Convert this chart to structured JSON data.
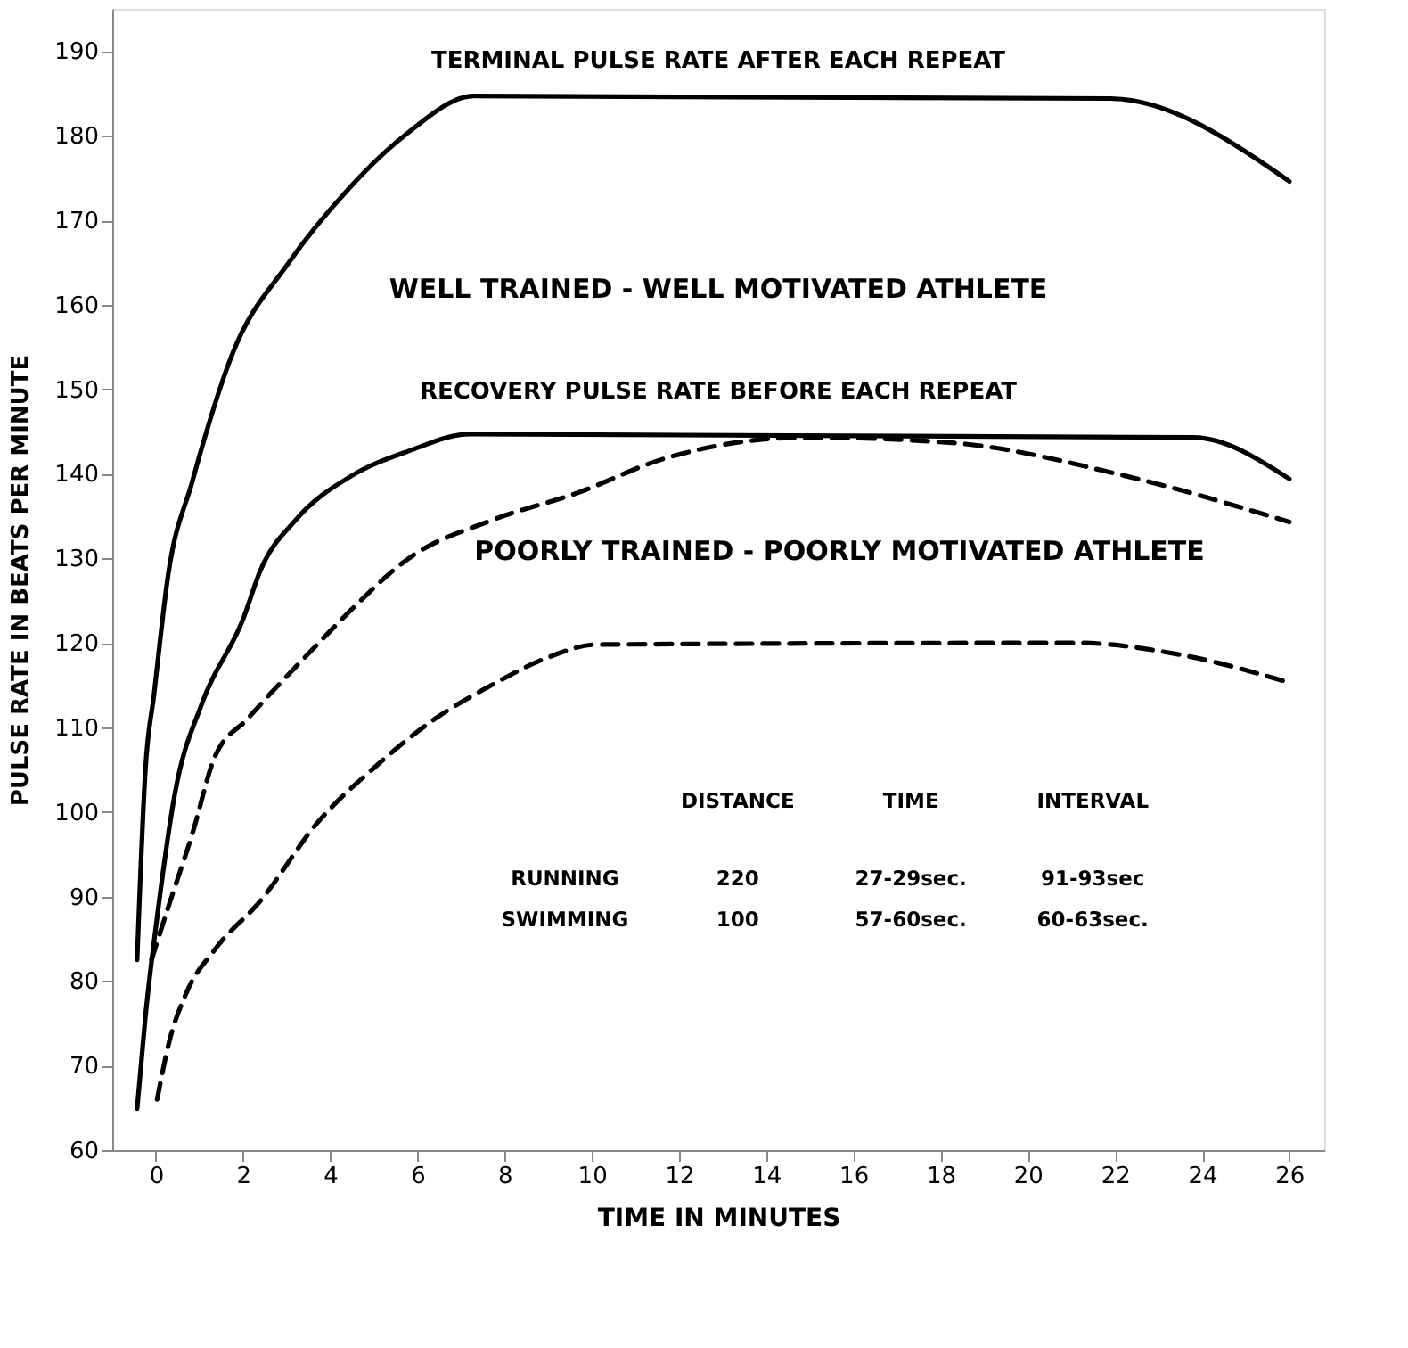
{
  "chart_data": {
    "type": "line",
    "xlabel": "TIME IN MINUTES",
    "ylabel": "PULSE RATE IN BEATS PER MINUTE",
    "xlim": [
      -1,
      26.8
    ],
    "ylim": [
      60,
      195
    ],
    "xticks": [
      0,
      2,
      4,
      6,
      8,
      10,
      12,
      14,
      16,
      18,
      20,
      22,
      24,
      26
    ],
    "yticks": [
      60,
      70,
      80,
      90,
      100,
      110,
      120,
      130,
      140,
      150,
      160,
      170,
      180,
      190
    ],
    "grid": false,
    "marker": "none",
    "series": [
      {
        "color": "#000000",
        "line_style": "solid",
        "x": [
          -0.43,
          -0.24,
          -0.04,
          0.28,
          0.83,
          1.74,
          3.05,
          4.4,
          5.7,
          7.3,
          21.9,
          26
        ],
        "values": [
          82.5,
          105,
          114,
          128,
          139,
          154,
          165,
          173.6,
          180,
          184.7,
          184.4,
          174.6
        ]
      },
      {
        "color": "#000000",
        "line_style": "solid",
        "x": [
          -0.43,
          -0.24,
          0.03,
          0.43,
          1.07,
          2.0,
          2.4,
          3.2,
          4.5,
          5.8,
          7.2,
          23.8,
          26
        ],
        "values": [
          64.9,
          75.8,
          87.6,
          102,
          113,
          122.8,
          128.6,
          134.5,
          139.8,
          142.7,
          144.7,
          144.3,
          139.4
        ]
      },
      {
        "color": "#000000",
        "line_style": "dashed",
        "x": [
          -0.1,
          0.3,
          0.83,
          1.35,
          2.1,
          3.7,
          4.4,
          5.8,
          7.7,
          9.7,
          11.6,
          14.9,
          18.2,
          22.2,
          26
        ],
        "values": [
          82.5,
          89,
          97.3,
          106.5,
          111,
          119.8,
          123.5,
          130,
          134.5,
          137.8,
          141.7,
          144.3,
          143.7,
          139.8,
          134.3
        ]
      },
      {
        "color": "#000000",
        "line_style": "dashed",
        "x": [
          0.03,
          0.3,
          0.7,
          1.35,
          2.4,
          3.7,
          5.0,
          6.4,
          7.7,
          9.0,
          10.1,
          21.1,
          23.5,
          26
        ],
        "values": [
          66,
          72.7,
          78.6,
          83.7,
          89.5,
          98.7,
          105.2,
          111,
          115,
          118.3,
          119.8,
          120,
          118.6,
          115.3
        ]
      }
    ],
    "annotations": [
      "TERMINAL PULSE RATE AFTER EACH REPEAT",
      "WELL TRAINED - WELL MOTIVATED ATHLETE",
      "RECOVERY PULSE RATE BEFORE EACH REPEAT",
      "POORLY TRAINED - POORLY MOTIVATED ATHLETE",
      "DISTANCE",
      "TIME",
      "INTERVAL",
      "RUNNING",
      "220",
      "27-29sec.",
      "91-93sec",
      "SWIMMING",
      "100",
      "57-60sec.",
      "60-63sec."
    ]
  }
}
